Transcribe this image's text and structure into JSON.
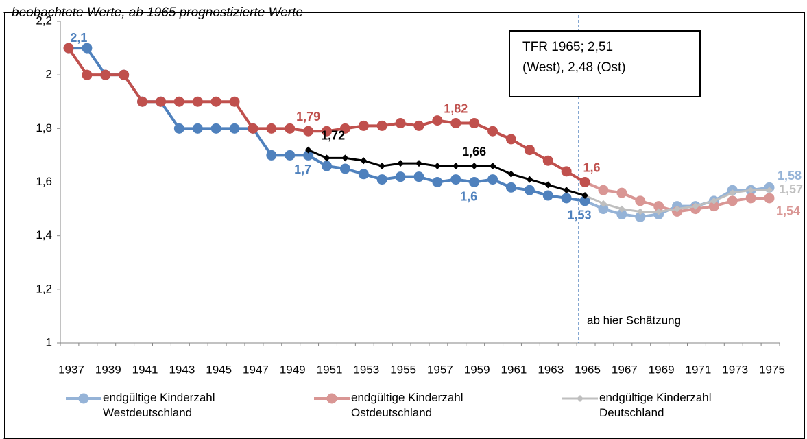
{
  "chart_data": {
    "type": "line",
    "subtitle": "beobachtete Werte, ab 1965 prognostizierte Werte",
    "categories": [
      "1937",
      null,
      "1939",
      null,
      "1941",
      null,
      "1943",
      null,
      "1945",
      null,
      "1947",
      null,
      "1949",
      null,
      "1951",
      null,
      "1953",
      null,
      "1955",
      null,
      "1957",
      null,
      "1959",
      null,
      "1961",
      null,
      "1963",
      null,
      "1965",
      null,
      "1967",
      null,
      "1969",
      null,
      "1971",
      null,
      "1973",
      null,
      "1975"
    ],
    "series": [
      {
        "name": "endgültige Kinderzahl Westdeutschland",
        "color": "#4f81bd",
        "forecast_color": "#95b3d7",
        "marker": "circle",
        "values": [
          2.1,
          2.1,
          2.0,
          2.0,
          1.9,
          1.9,
          1.8,
          1.8,
          1.8,
          1.8,
          1.8,
          1.7,
          1.7,
          1.7,
          1.66,
          1.65,
          1.63,
          1.61,
          1.62,
          1.62,
          1.6,
          1.61,
          1.6,
          1.61,
          1.58,
          1.57,
          1.55,
          1.54,
          1.53,
          1.5,
          1.48,
          1.47,
          1.48,
          1.51,
          1.51,
          1.53,
          1.57,
          1.57,
          1.58
        ],
        "value_labels": [
          null,
          "2,1",
          null,
          null,
          null,
          null,
          null,
          null,
          null,
          null,
          null,
          null,
          null,
          "1,7",
          null,
          null,
          null,
          null,
          null,
          null,
          null,
          null,
          "1,6",
          null,
          null,
          null,
          null,
          null,
          "1,53",
          null,
          null,
          null,
          null,
          null,
          null,
          null,
          null,
          null,
          "1,58"
        ]
      },
      {
        "name": "endgültige Kinderzahl Ostdeutschland",
        "color": "#c0504d",
        "forecast_color": "#d99694",
        "marker": "circle",
        "values": [
          2.1,
          2.0,
          2.0,
          2.0,
          1.9,
          1.9,
          1.9,
          1.9,
          1.9,
          1.9,
          1.8,
          1.8,
          1.8,
          1.79,
          1.79,
          1.8,
          1.81,
          1.81,
          1.82,
          1.81,
          1.83,
          1.82,
          1.82,
          1.79,
          1.76,
          1.72,
          1.68,
          1.64,
          1.6,
          1.57,
          1.56,
          1.53,
          1.51,
          1.49,
          1.5,
          1.51,
          1.53,
          1.54,
          1.54
        ],
        "value_labels": [
          null,
          null,
          null,
          null,
          null,
          null,
          null,
          null,
          null,
          null,
          null,
          null,
          null,
          "1,79",
          null,
          null,
          null,
          null,
          null,
          null,
          null,
          "1,82",
          null,
          null,
          null,
          null,
          null,
          null,
          "1,6",
          null,
          null,
          null,
          null,
          null,
          null,
          null,
          null,
          null,
          "1,54"
        ]
      },
      {
        "name": "endgültige Kinderzahl Deutschland",
        "color": "#000000",
        "forecast_color": "#bfbfbf",
        "marker": "diamond",
        "values": [
          null,
          null,
          null,
          null,
          null,
          null,
          null,
          null,
          null,
          null,
          null,
          null,
          null,
          1.72,
          1.69,
          1.69,
          1.68,
          1.66,
          1.67,
          1.67,
          1.66,
          1.66,
          1.66,
          1.66,
          1.63,
          1.61,
          1.59,
          1.57,
          1.55,
          1.52,
          1.5,
          1.49,
          1.49,
          1.5,
          1.51,
          1.53,
          1.56,
          1.57,
          1.57
        ],
        "value_labels": [
          null,
          null,
          null,
          null,
          null,
          null,
          null,
          null,
          null,
          null,
          null,
          null,
          null,
          "1,72",
          null,
          null,
          null,
          null,
          null,
          null,
          null,
          null,
          "1,66",
          null,
          null,
          null,
          null,
          null,
          null,
          null,
          null,
          null,
          null,
          null,
          null,
          null,
          null,
          null,
          "1,57"
        ]
      }
    ],
    "ylim": [
      1,
      2.2
    ],
    "yticks": [
      1,
      {
        "value": 1.2,
        "label": "1,2"
      },
      {
        "value": 1.4,
        "label": "1,4"
      },
      {
        "value": 1.6,
        "label": "1,6"
      },
      {
        "value": 1.8,
        "label": "1,8"
      },
      2,
      {
        "value": 2.2,
        "label": "2,2"
      }
    ],
    "grid": false,
    "vline_at": "1965",
    "vline_label": "ab hier Schätzung",
    "note": [
      "TFR 1965; 2,51",
      "(West), 2,48 (Ost)"
    ]
  }
}
